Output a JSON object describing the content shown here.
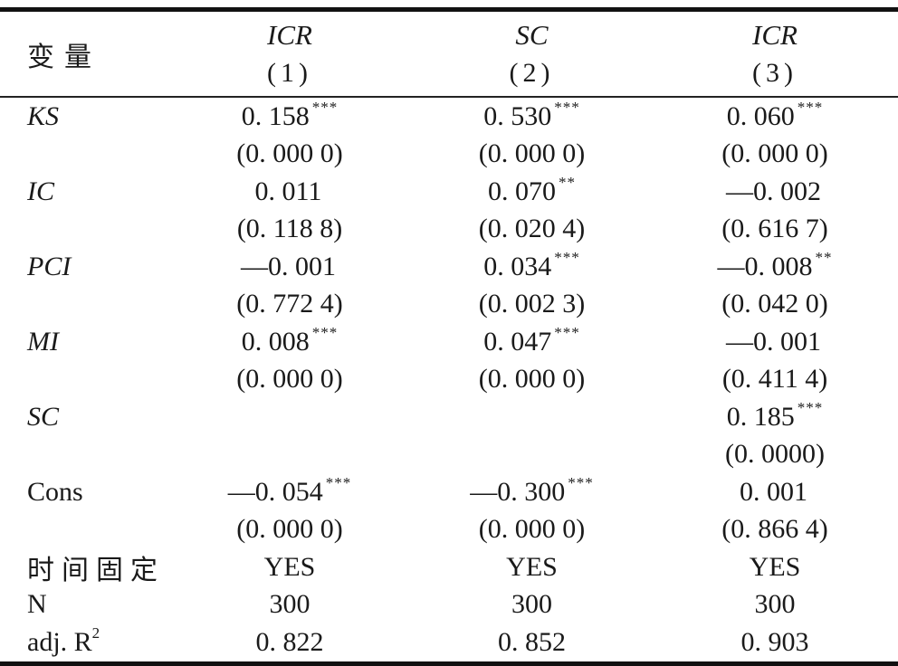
{
  "colors": {
    "background": "#ffffff",
    "text": "#1a1a1a",
    "rule": "#111111"
  },
  "table": {
    "header": {
      "row_label": "变量",
      "columns": [
        {
          "dep_var": "ICR",
          "model_no": "(1)"
        },
        {
          "dep_var": "SC",
          "model_no": "(2)"
        },
        {
          "dep_var": "ICR",
          "model_no": "(3)"
        }
      ]
    },
    "coef_rows": [
      {
        "label": "KS",
        "cells": [
          {
            "coef": "0. 158",
            "stars": "***",
            "p": "(0. 000 0)"
          },
          {
            "coef": "0. 530",
            "stars": "***",
            "p": "(0. 000 0)"
          },
          {
            "coef": "0. 060",
            "stars": "***",
            "p": "(0. 000 0)"
          }
        ]
      },
      {
        "label": "IC",
        "cells": [
          {
            "coef": "0. 011",
            "stars": "",
            "p": "(0. 118 8)"
          },
          {
            "coef": "0. 070",
            "stars": "**",
            "p": "(0. 020 4)"
          },
          {
            "coef": "—0. 002",
            "stars": "",
            "p": "(0. 616 7)"
          }
        ]
      },
      {
        "label": "PCI",
        "cells": [
          {
            "coef": "—0. 001",
            "stars": "",
            "p": "(0. 772 4)"
          },
          {
            "coef": "0. 034",
            "stars": "***",
            "p": "(0. 002 3)"
          },
          {
            "coef": "—0. 008",
            "stars": "**",
            "p": "(0. 042 0)"
          }
        ]
      },
      {
        "label": "MI",
        "cells": [
          {
            "coef": "0. 008",
            "stars": "***",
            "p": "(0. 000 0)"
          },
          {
            "coef": "0. 047",
            "stars": "***",
            "p": "(0. 000 0)"
          },
          {
            "coef": "—0. 001",
            "stars": "",
            "p": "(0. 411 4)"
          }
        ]
      },
      {
        "label": "SC",
        "cells": [
          {
            "coef": "",
            "stars": "",
            "p": ""
          },
          {
            "coef": "",
            "stars": "",
            "p": ""
          },
          {
            "coef": "0. 185",
            "stars": "***",
            "p": "(0. 0000)"
          }
        ]
      },
      {
        "label": "Cons",
        "cells": [
          {
            "coef": "—0. 054",
            "stars": "***",
            "p": "(0. 000 0)"
          },
          {
            "coef": "—0. 300",
            "stars": "***",
            "p": "(0. 000 0)"
          },
          {
            "coef": "0. 001",
            "stars": "",
            "p": "(0. 866 4)"
          }
        ]
      }
    ],
    "summary_rows": [
      {
        "label": "时间固定",
        "values": [
          "YES",
          "YES",
          "YES"
        ]
      },
      {
        "label": "N",
        "values": [
          "300",
          "300",
          "300"
        ]
      },
      {
        "label": "adj. R",
        "label_sup": "2",
        "values": [
          "0. 822",
          "0. 852",
          "0. 903"
        ]
      }
    ]
  }
}
